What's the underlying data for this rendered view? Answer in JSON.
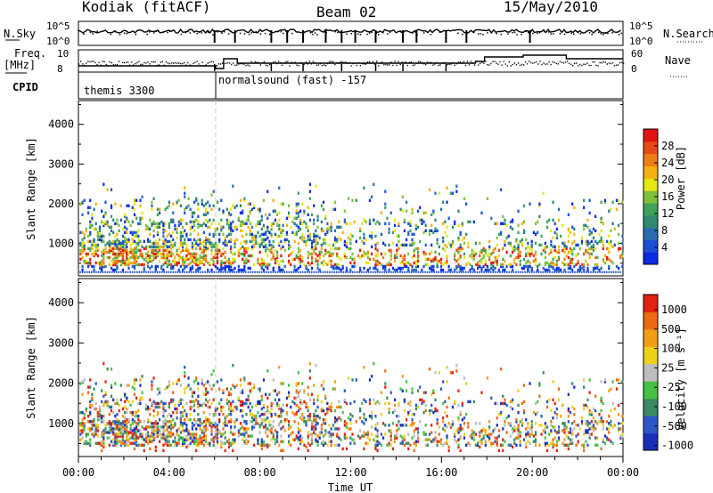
{
  "header": {
    "station": "Kodiak (fitACF)",
    "beam": "Beam 02",
    "date": "15/May/2010"
  },
  "top_panels": {
    "nsky_label": "N.Sky",
    "nsky_ticks": [
      "10^5",
      "10^0"
    ],
    "nsearch_label": "N.Search",
    "nsearch_ticks": [
      "10^5",
      "10^0"
    ],
    "freq_label": "Freq.",
    "freq_unit": "[MHz]",
    "freq_ticks": [
      "10",
      "8"
    ],
    "nave_label": "Nave",
    "nave_ticks": [
      "60",
      "0"
    ],
    "cpid_label": "CPID",
    "cpid_segments": [
      {
        "start_h": 0.0,
        "end_h": 6.05,
        "label": "themis 3300"
      },
      {
        "start_h": 6.05,
        "end_h": 24.0,
        "label": "normalsound (fast) -157"
      }
    ]
  },
  "x_axis": {
    "label": "Time UT",
    "ticks": [
      "00:00",
      "04:00",
      "08:00",
      "12:00",
      "16:00",
      "20:00",
      "00:00"
    ]
  },
  "chart_data": [
    {
      "type": "heatmap",
      "name": "power-panel",
      "ylabel": "Slant Range [km]",
      "ylim": [
        180,
        4600
      ],
      "yticks": [
        1000,
        2000,
        3000,
        4000
      ],
      "xlim_hours": [
        0,
        24
      ],
      "colorbar": {
        "label": "Power [dB]",
        "range": [
          0,
          32
        ],
        "ticks": [
          4,
          8,
          12,
          16,
          20,
          24,
          28
        ],
        "colors": [
          "#0a2be0",
          "#1c4fd6",
          "#2b6cb0",
          "#2e8b6f",
          "#3fa35a",
          "#7fc23a",
          "#e6e612",
          "#f3b010",
          "#ef7d16",
          "#e84a14",
          "#e01414"
        ]
      }
    },
    {
      "type": "heatmap",
      "name": "velocity-panel",
      "ylabel": "Slant Range [km]",
      "ylim": [
        180,
        4600
      ],
      "yticks": [
        1000,
        2000,
        3000,
        4000
      ],
      "xlim_hours": [
        0,
        24
      ],
      "colorbar": {
        "label": "Velocity  [m s⁻¹]",
        "range": [
          -1200,
          1200
        ],
        "ticks": [
          "1000",
          "500",
          "100",
          "25",
          "-25",
          "-100",
          "-500",
          "-1000"
        ],
        "colors": [
          "#1a2fb8",
          "#2b58c8",
          "#3b8a63",
          "#44c244",
          "#bdbdbd",
          "#ecd21c",
          "#f09e18",
          "#eb6a12",
          "#e12212"
        ]
      }
    }
  ]
}
